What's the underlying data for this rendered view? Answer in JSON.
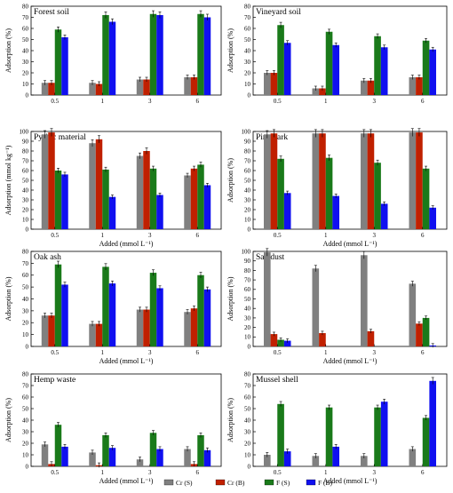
{
  "colors": {
    "cr_s": "#808080",
    "cr_b": "#c02000",
    "f_s": "#1a7a1a",
    "f_b": "#1010f0"
  },
  "legend": [
    {
      "key": "cr_s",
      "label": "Cr (S)"
    },
    {
      "key": "cr_b",
      "label": "Cr (B)"
    },
    {
      "key": "f_s",
      "label": "F (S)"
    },
    {
      "key": "f_b",
      "label": "F (B)"
    }
  ],
  "chart_data": [
    {
      "type": "bar",
      "title": "Forest soil",
      "xlabel": "",
      "ylabel": "Adsorption (%)",
      "ylim": [
        0,
        80
      ],
      "yticks": [
        0,
        10,
        20,
        30,
        40,
        50,
        60,
        70,
        80
      ],
      "categories": [
        "0.5",
        "1",
        "3",
        "6"
      ],
      "series": [
        {
          "name": "Cr (S)",
          "key": "cr_s",
          "values": [
            11,
            11,
            14,
            16
          ]
        },
        {
          "name": "Cr (B)",
          "key": "cr_b",
          "values": [
            11,
            10,
            14,
            16
          ]
        },
        {
          "name": "F (S)",
          "key": "f_s",
          "values": [
            59,
            72,
            73,
            73
          ]
        },
        {
          "name": "F (B)",
          "key": "f_b",
          "values": [
            52,
            66,
            72,
            70
          ]
        }
      ]
    },
    {
      "type": "bar",
      "title": "Vineyard soil",
      "xlabel": "",
      "ylabel": "Adsorption (%)",
      "ylim": [
        0,
        80
      ],
      "yticks": [
        0,
        10,
        20,
        30,
        40,
        50,
        60,
        70,
        80
      ],
      "categories": [
        "0.5",
        "1",
        "3",
        "6"
      ],
      "series": [
        {
          "name": "Cr (S)",
          "key": "cr_s",
          "values": [
            20,
            6,
            13,
            16
          ]
        },
        {
          "name": "Cr (B)",
          "key": "cr_b",
          "values": [
            20,
            6,
            13,
            16
          ]
        },
        {
          "name": "F (S)",
          "key": "f_s",
          "values": [
            63,
            57,
            53,
            49
          ]
        },
        {
          "name": "F (B)",
          "key": "f_b",
          "values": [
            47,
            45,
            43,
            41
          ]
        }
      ]
    },
    {
      "type": "bar",
      "title": "Pyritic material",
      "xlabel": "Added (mmol L⁻¹)",
      "ylabel": "Adsorption (mmol kg⁻¹)",
      "ylim": [
        0,
        100
      ],
      "yticks": [
        0,
        10,
        20,
        30,
        40,
        50,
        60,
        70,
        80,
        90,
        100
      ],
      "categories": [
        "0.5",
        "1",
        "3",
        "6"
      ],
      "series": [
        {
          "name": "Cr (S)",
          "key": "cr_s",
          "values": [
            97,
            88,
            75,
            55
          ]
        },
        {
          "name": "Cr (B)",
          "key": "cr_b",
          "values": [
            99,
            92,
            80,
            62
          ]
        },
        {
          "name": "F (S)",
          "key": "f_s",
          "values": [
            60,
            61,
            62,
            66
          ]
        },
        {
          "name": "F (B)",
          "key": "f_b",
          "values": [
            56,
            33,
            35,
            45
          ]
        }
      ]
    },
    {
      "type": "bar",
      "title": "Pine bark",
      "xlabel": "Added (mmol L⁻¹)",
      "ylabel": "Adsorption (%)",
      "ylim": [
        0,
        100
      ],
      "yticks": [
        0,
        10,
        20,
        30,
        40,
        50,
        60,
        70,
        80,
        90,
        100
      ],
      "categories": [
        "0.5",
        "1",
        "3",
        "6"
      ],
      "series": [
        {
          "name": "Cr (S)",
          "key": "cr_s",
          "values": [
            97,
            98,
            98,
            99
          ]
        },
        {
          "name": "Cr (B)",
          "key": "cr_b",
          "values": [
            98,
            98,
            98,
            99
          ]
        },
        {
          "name": "F (S)",
          "key": "f_s",
          "values": [
            72,
            73,
            68,
            62
          ]
        },
        {
          "name": "F (B)",
          "key": "f_b",
          "values": [
            37,
            34,
            26,
            22
          ]
        }
      ]
    },
    {
      "type": "bar",
      "title": "Oak ash",
      "xlabel": "Added (mmol L⁻¹)",
      "ylabel": "Adsorption (%)",
      "ylim": [
        0,
        80
      ],
      "yticks": [
        0,
        10,
        20,
        30,
        40,
        50,
        60,
        70,
        80
      ],
      "categories": [
        "0.5",
        "1",
        "3",
        "6"
      ],
      "series": [
        {
          "name": "Cr (S)",
          "key": "cr_s",
          "values": [
            26,
            19,
            31,
            29
          ]
        },
        {
          "name": "Cr (B)",
          "key": "cr_b",
          "values": [
            26,
            19,
            31,
            32
          ]
        },
        {
          "name": "F (S)",
          "key": "f_s",
          "values": [
            69,
            67,
            62,
            60
          ]
        },
        {
          "name": "F (B)",
          "key": "f_b",
          "values": [
            52,
            53,
            49,
            48
          ]
        }
      ]
    },
    {
      "type": "bar",
      "title": "Sawdust",
      "xlabel": "Added (mmol L⁻¹)",
      "ylabel": "Adsorption (%)",
      "ylim": [
        0,
        100
      ],
      "yticks": [
        0,
        10,
        20,
        30,
        40,
        50,
        60,
        70,
        80,
        90,
        100
      ],
      "categories": [
        "0.5",
        "1",
        "3",
        "6"
      ],
      "series": [
        {
          "name": "Cr (S)",
          "key": "cr_s",
          "values": [
            99,
            82,
            96,
            66
          ]
        },
        {
          "name": "Cr (B)",
          "key": "cr_b",
          "values": [
            13,
            14,
            16,
            24
          ]
        },
        {
          "name": "F (S)",
          "key": "f_s",
          "values": [
            7,
            0,
            0,
            30
          ]
        },
        {
          "name": "F (B)",
          "key": "f_b",
          "values": [
            6,
            0,
            0,
            1
          ]
        }
      ]
    },
    {
      "type": "bar",
      "title": "Hemp waste",
      "xlabel": "Added (mmol L⁻¹)",
      "ylabel": "Adsorption (%)",
      "ylim": [
        0,
        80
      ],
      "yticks": [
        0,
        10,
        20,
        30,
        40,
        50,
        60,
        70,
        80
      ],
      "categories": [
        "0.5",
        "1",
        "3",
        "6"
      ],
      "series": [
        {
          "name": "Cr (S)",
          "key": "cr_s",
          "values": [
            19,
            12,
            6,
            15
          ]
        },
        {
          "name": "Cr (B)",
          "key": "cr_b",
          "values": [
            2,
            1,
            0,
            2
          ]
        },
        {
          "name": "F (S)",
          "key": "f_s",
          "values": [
            36,
            27,
            29,
            27
          ]
        },
        {
          "name": "F (B)",
          "key": "f_b",
          "values": [
            17,
            16,
            15,
            14
          ]
        }
      ]
    },
    {
      "type": "bar",
      "title": "Mussel shell",
      "xlabel": "Added (mmol L⁻¹)",
      "ylabel": "Adsorption (%)",
      "ylim": [
        0,
        80
      ],
      "yticks": [
        0,
        10,
        20,
        30,
        40,
        50,
        60,
        70,
        80
      ],
      "categories": [
        "0.5",
        "1",
        "3",
        "6"
      ],
      "series": [
        {
          "name": "Cr (S)",
          "key": "cr_s",
          "values": [
            10,
            9,
            9,
            15
          ]
        },
        {
          "name": "Cr (B)",
          "key": "cr_b",
          "values": [
            0,
            0,
            0,
            0
          ]
        },
        {
          "name": "F (S)",
          "key": "f_s",
          "values": [
            54,
            51,
            51,
            42
          ]
        },
        {
          "name": "F (B)",
          "key": "f_b",
          "values": [
            13,
            17,
            56,
            74
          ]
        }
      ]
    }
  ]
}
